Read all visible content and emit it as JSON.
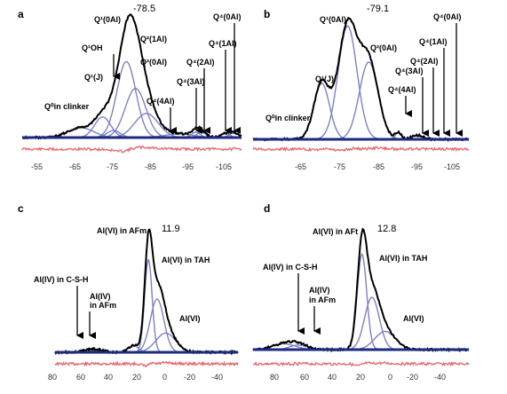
{
  "chart_data": [
    {
      "type": "line",
      "panel": "a",
      "xaxis": {
        "ticks": [
          "-55",
          "-65",
          "-75",
          "-85",
          "-95",
          "-105"
        ],
        "reversed": true
      },
      "peak_value": "-78.5",
      "annotations": [
        {
          "text": "Q⁰in clinker",
          "arrow": false
        },
        {
          "text": "Q¹(J)",
          "arrow": false
        },
        {
          "text": "Q¹OH",
          "arrow": true
        },
        {
          "text": "Q¹(0Al)",
          "arrow": false
        },
        {
          "text": "Q²(1Al)",
          "arrow": false
        },
        {
          "text": "Q²(0Al)",
          "arrow": false
        },
        {
          "text": "Q⁴(4Al)",
          "arrow": true
        },
        {
          "text": "Q⁴(3Al)",
          "arrow": true
        },
        {
          "text": "Q⁴(2Al)",
          "arrow": true
        },
        {
          "text": "Q⁴(1Al)",
          "arrow": true
        },
        {
          "text": "Q⁴(0Al)",
          "arrow": true
        }
      ],
      "components_ppm": [
        {
          "center": -66.0,
          "height": 0.11,
          "width": 3.5
        },
        {
          "center": -72.0,
          "height": 0.23,
          "width": 2.2
        },
        {
          "center": -75.0,
          "height": 0.08,
          "width": 1.8
        },
        {
          "center": -78.5,
          "height": 0.85,
          "width": 2.6
        },
        {
          "center": -81.0,
          "height": 0.55,
          "width": 2.8
        },
        {
          "center": -84.0,
          "height": 0.27,
          "width": 3.2
        },
        {
          "center": -93.0,
          "height": 0.04,
          "width": 4.0
        },
        {
          "center": -97.5,
          "height": 0.06,
          "width": 1.2
        },
        {
          "center": -99.0,
          "height": 0.06,
          "width": 1.2
        },
        {
          "center": -105.5,
          "height": 0.04,
          "width": 1.4
        },
        {
          "center": -108.0,
          "height": 0.05,
          "width": 1.4
        }
      ]
    },
    {
      "type": "line",
      "panel": "b",
      "xaxis": {
        "ticks": [
          "-65",
          "-75",
          "-85",
          "-95",
          "-105"
        ],
        "reversed": true
      },
      "peak_value": "-79.1",
      "annotations": [
        {
          "text": "Q⁰in clinker",
          "arrow": false
        },
        {
          "text": "Q¹(J)",
          "arrow": false
        },
        {
          "text": "Q¹(0Al)",
          "arrow": false
        },
        {
          "text": "Q²(0Al)",
          "arrow": false
        },
        {
          "text": "Q⁴(4Al)",
          "arrow": true
        },
        {
          "text": "Q⁴(3Al)",
          "arrow": true
        },
        {
          "text": "Q⁴(2Al)",
          "arrow": true
        },
        {
          "text": "Q⁴(1Al)",
          "arrow": true
        },
        {
          "text": "Q⁴(0Al)",
          "arrow": true
        }
      ],
      "components_ppm": [
        {
          "center": -72.5,
          "height": 0.42,
          "width": 2.0
        },
        {
          "center": -79.1,
          "height": 0.85,
          "width": 2.4
        },
        {
          "center": -84.5,
          "height": 0.58,
          "width": 2.4
        },
        {
          "center": -92.0,
          "height": 0.05,
          "width": 0.8
        },
        {
          "center": -97.0,
          "height": 0.03,
          "width": 1.5
        }
      ]
    },
    {
      "type": "line",
      "panel": "c",
      "xaxis": {
        "ticks": [
          "80",
          "60",
          "40",
          "20",
          "0",
          "-20",
          "-40"
        ],
        "reversed": true
      },
      "peak_value": "11.9",
      "annotations": [
        {
          "text": "Al(VI) in AFm",
          "arrow": false
        },
        {
          "text": "Al(VI) in TAH",
          "arrow": false
        },
        {
          "text": "Al(IV) in C-S-H",
          "arrow": true
        },
        {
          "text": "Al(IV)",
          "arrow": true
        },
        {
          "text": "in AFm",
          "arrow": false
        },
        {
          "text": "Al(VI)",
          "arrow": false
        }
      ],
      "components_ppm": [
        {
          "center": 12.0,
          "height": 0.82,
          "width": 3.0
        },
        {
          "center": 5.0,
          "height": 0.47,
          "width": 5.5
        },
        {
          "center": -2.0,
          "height": 0.17,
          "width": 8.0
        },
        {
          "center": 24.0,
          "height": 0.06,
          "width": 4.0
        },
        {
          "center": 60.0,
          "height": 0.02,
          "width": 5.0
        },
        {
          "center": 52.0,
          "height": 0.02,
          "width": 5.0
        }
      ]
    },
    {
      "type": "line",
      "panel": "d",
      "xaxis": {
        "ticks": [
          "80",
          "60",
          "40",
          "20",
          "0",
          "-20",
          "-40"
        ],
        "reversed": true
      },
      "peak_value": "12.8",
      "annotations": [
        {
          "text": "Al(VI) in AFt",
          "arrow": false
        },
        {
          "text": "Al(VI) in TAH",
          "arrow": false
        },
        {
          "text": "Al(IV) in C-S-H",
          "arrow": true
        },
        {
          "text": "Al(IV)",
          "arrow": true
        },
        {
          "text": "in AFm",
          "arrow": false
        },
        {
          "text": "Al(VI)",
          "arrow": false
        }
      ],
      "components_ppm": [
        {
          "center": 12.8,
          "height": 0.84,
          "width": 3.2
        },
        {
          "center": 6.0,
          "height": 0.46,
          "width": 5.0
        },
        {
          "center": -3.0,
          "height": 0.16,
          "width": 7.0
        },
        {
          "center": 66.0,
          "height": 0.05,
          "width": 8.0
        },
        {
          "center": 56.0,
          "height": 0.04,
          "width": 6.0
        }
      ]
    }
  ]
}
